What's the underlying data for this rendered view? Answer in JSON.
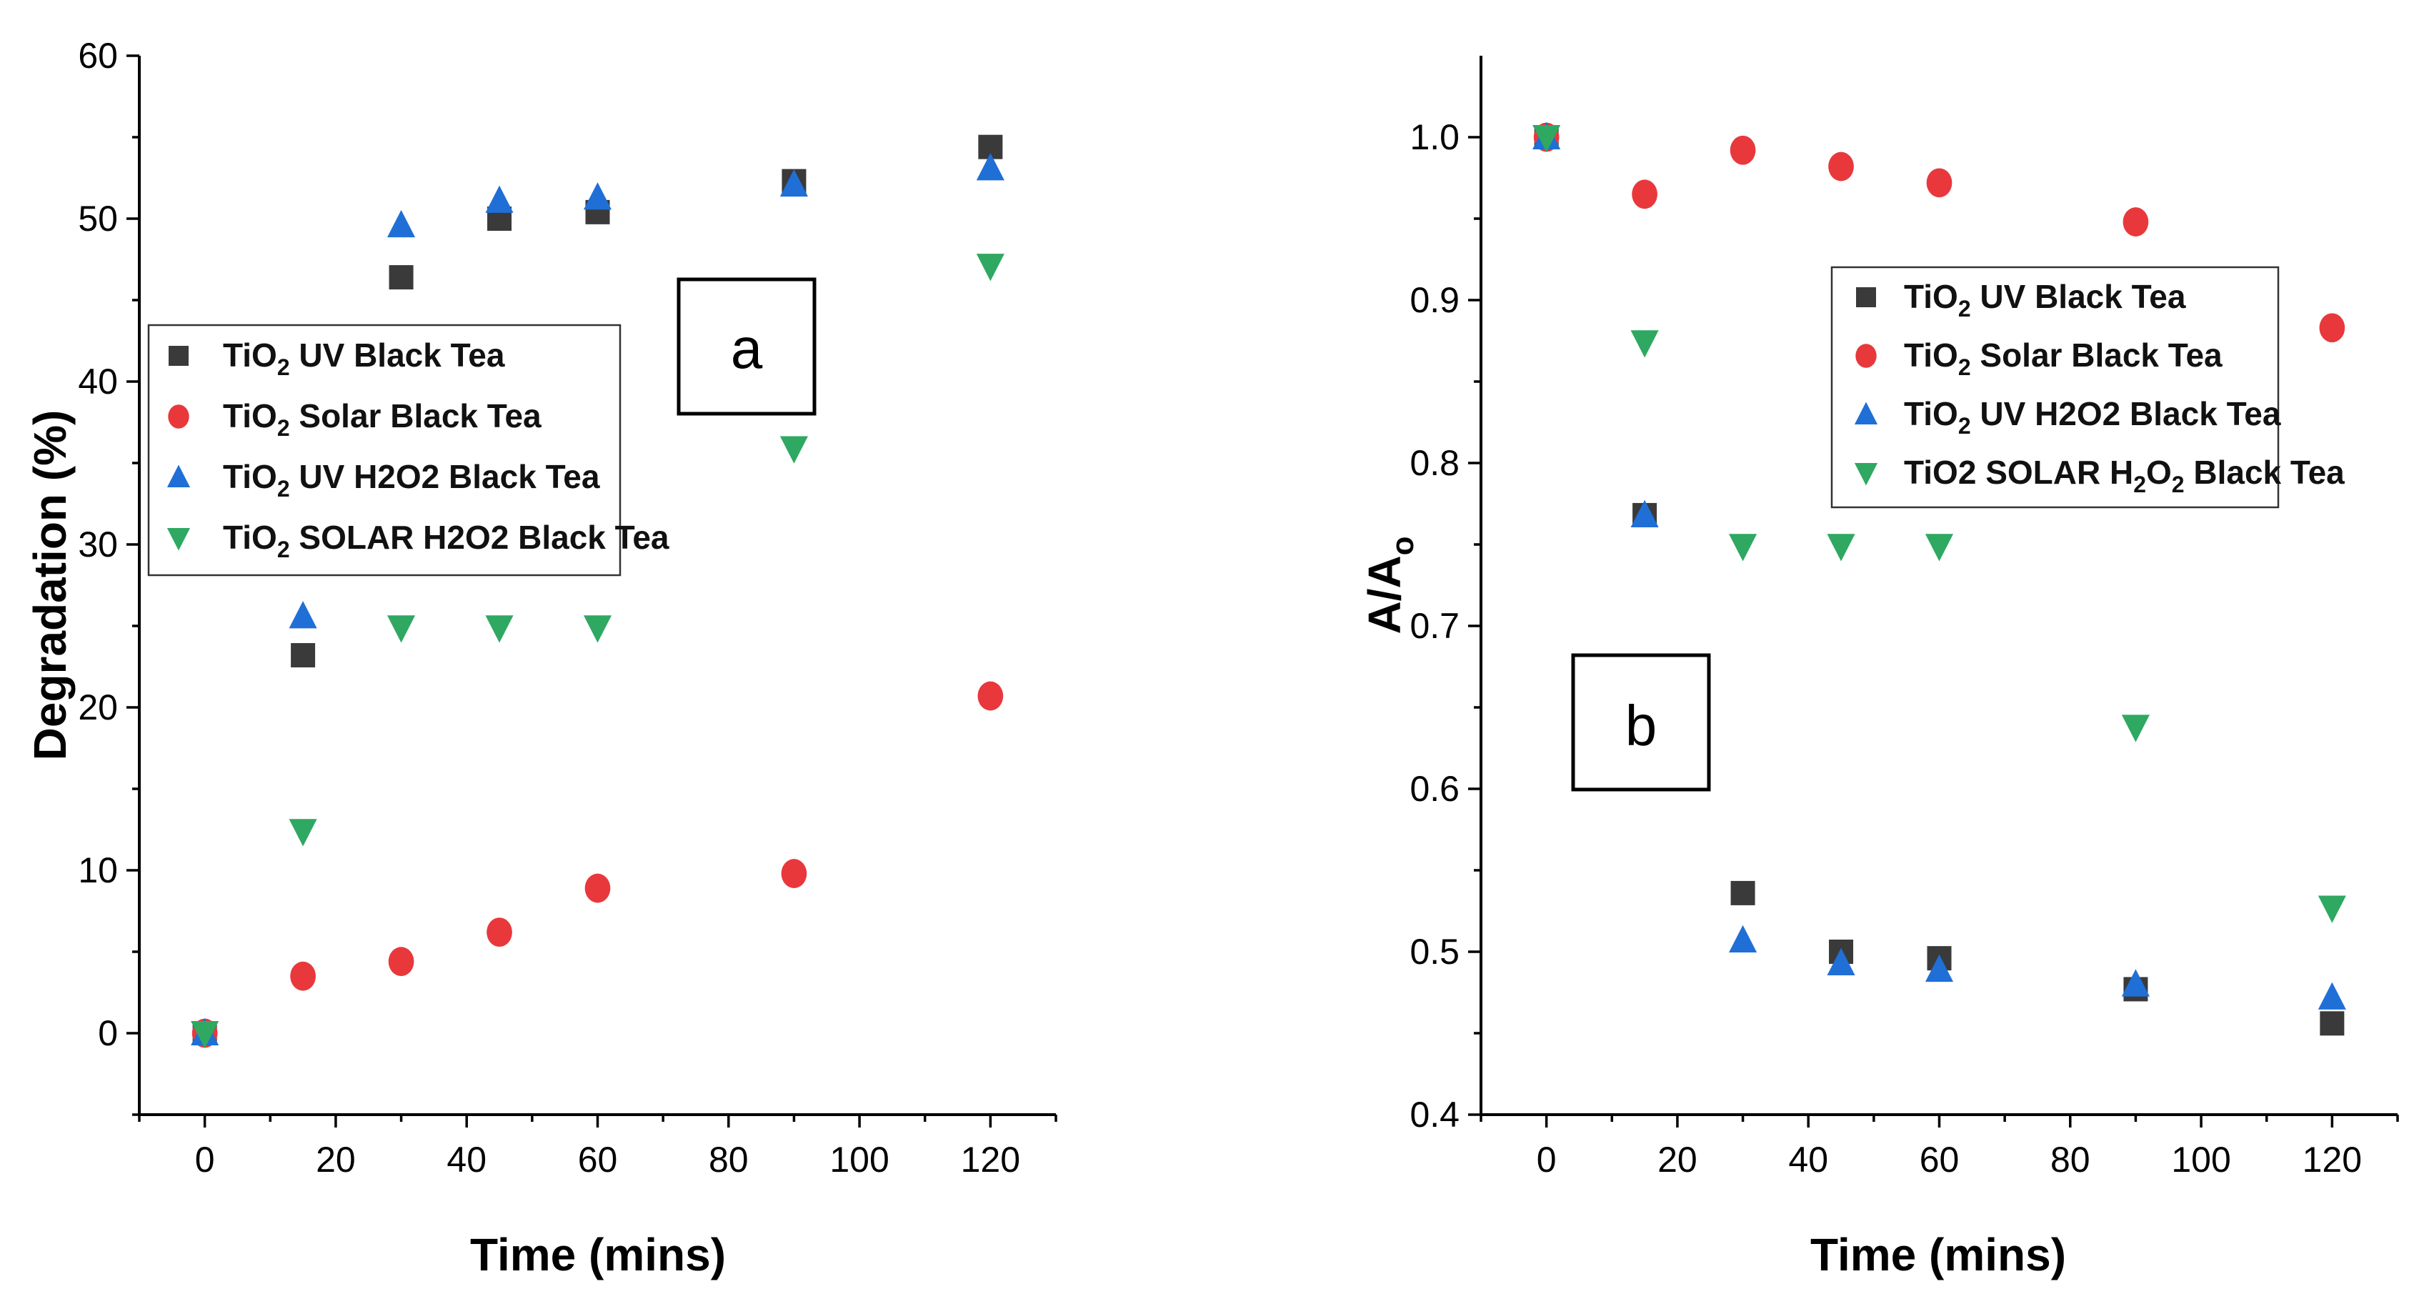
{
  "colors": {
    "uv": "#3a3a3a",
    "solar": "#e8383c",
    "uv_h2o2": "#1f6fd6",
    "solar_h2o2": "#2fa862"
  },
  "chart_data": [
    {
      "panel": "a",
      "type": "scatter",
      "title": "",
      "xlabel": "Time (mins)",
      "ylabel": "Degradation (%)",
      "xlim": [
        -10,
        130
      ],
      "ylim": [
        -5,
        60
      ],
      "xticks": [
        0,
        20,
        40,
        60,
        80,
        100,
        120
      ],
      "yticks": [
        0,
        10,
        20,
        30,
        40,
        50,
        60
      ],
      "legend_position": "middle-left",
      "series": [
        {
          "key": "uv",
          "marker": "square",
          "label_main": "TiO",
          "label_sub": "2",
          "label_rest": " UV Black Tea",
          "label_rest_sub": "",
          "label_tail": "",
          "x": [
            0,
            15,
            30,
            45,
            60,
            90,
            120
          ],
          "y": [
            0,
            23.2,
            46.4,
            50,
            50.4,
            52.3,
            54.4
          ]
        },
        {
          "key": "solar",
          "marker": "circle",
          "label_main": "TiO",
          "label_sub": "2",
          "label_rest": " Solar Black Tea",
          "label_rest_sub": "",
          "label_tail": "",
          "x": [
            0,
            15,
            30,
            45,
            60,
            90,
            120
          ],
          "y": [
            0,
            3.5,
            4.4,
            6.2,
            8.9,
            9.8,
            20.7
          ]
        },
        {
          "key": "uv_h2o2",
          "marker": "triangle-up",
          "label_main": "TiO",
          "label_sub": "2",
          "label_rest": " UV H2O2 Black Tea",
          "label_rest_sub": "",
          "label_tail": "",
          "x": [
            0,
            15,
            30,
            45,
            60,
            90,
            120
          ],
          "y": [
            0,
            25.6,
            49.6,
            51.1,
            51.3,
            52.1,
            53.1
          ]
        },
        {
          "key": "solar_h2o2",
          "marker": "triangle-down",
          "label_main": "TiO",
          "label_sub": "2",
          "label_rest": " SOLAR H2O2 Black Tea",
          "label_rest_sub": "",
          "label_tail": "",
          "x": [
            0,
            15,
            30,
            45,
            60,
            90,
            120
          ],
          "y": [
            0,
            12.4,
            24.9,
            24.9,
            24.9,
            35.9,
            47.1
          ]
        }
      ]
    },
    {
      "panel": "b",
      "type": "scatter",
      "title": "",
      "xlabel": "Time (mins)",
      "ylabel": "A/A",
      "ylabel_sub": "o",
      "xlim": [
        -10,
        130
      ],
      "ylim": [
        0.4,
        1.05
      ],
      "xticks": [
        0,
        20,
        40,
        60,
        80,
        100,
        120
      ],
      "yticks": [
        0.4,
        0.5,
        0.6,
        0.7,
        0.8,
        0.9,
        1.0
      ],
      "ytick_labels": [
        "0.4",
        "0.5",
        "0.6",
        "0.7",
        "0.8",
        "0.9",
        "1.0"
      ],
      "legend_position": "upper-middle",
      "series": [
        {
          "key": "uv",
          "marker": "square",
          "label_main": "TiO",
          "label_sub": "2",
          "label_rest": " UV Black Tea",
          "label_rest_sub": "",
          "label_tail": "",
          "x": [
            0,
            15,
            30,
            45,
            60,
            90,
            120
          ],
          "y": [
            1.0,
            0.768,
            0.536,
            0.5,
            0.496,
            0.477,
            0.456
          ]
        },
        {
          "key": "solar",
          "marker": "circle",
          "label_main": "TiO",
          "label_sub": "2",
          "label_rest": " Solar Black Tea",
          "label_rest_sub": "",
          "label_tail": "",
          "x": [
            0,
            15,
            30,
            45,
            60,
            90,
            120
          ],
          "y": [
            1.0,
            0.965,
            0.992,
            0.982,
            0.972,
            0.948,
            0.883
          ]
        },
        {
          "key": "uv_h2o2",
          "marker": "triangle-up",
          "label_main": "TiO",
          "label_sub": "2",
          "label_rest": " UV H2O2 Black Tea",
          "label_rest_sub": "",
          "label_tail": "",
          "x": [
            0,
            15,
            30,
            45,
            60,
            90,
            120
          ],
          "y": [
            1.0,
            0.768,
            0.507,
            0.493,
            0.489,
            0.48,
            0.472
          ]
        },
        {
          "key": "solar_h2o2",
          "marker": "triangle-down",
          "label_main": "TiO2 SOLAR H",
          "label_sub": "2",
          "label_rest": "O",
          "label_rest_sub": "2",
          "label_tail": " Black Tea",
          "x": [
            0,
            15,
            30,
            45,
            60,
            90,
            120
          ],
          "y": [
            1.0,
            0.874,
            0.749,
            0.749,
            0.749,
            0.638,
            0.527
          ]
        }
      ]
    }
  ]
}
